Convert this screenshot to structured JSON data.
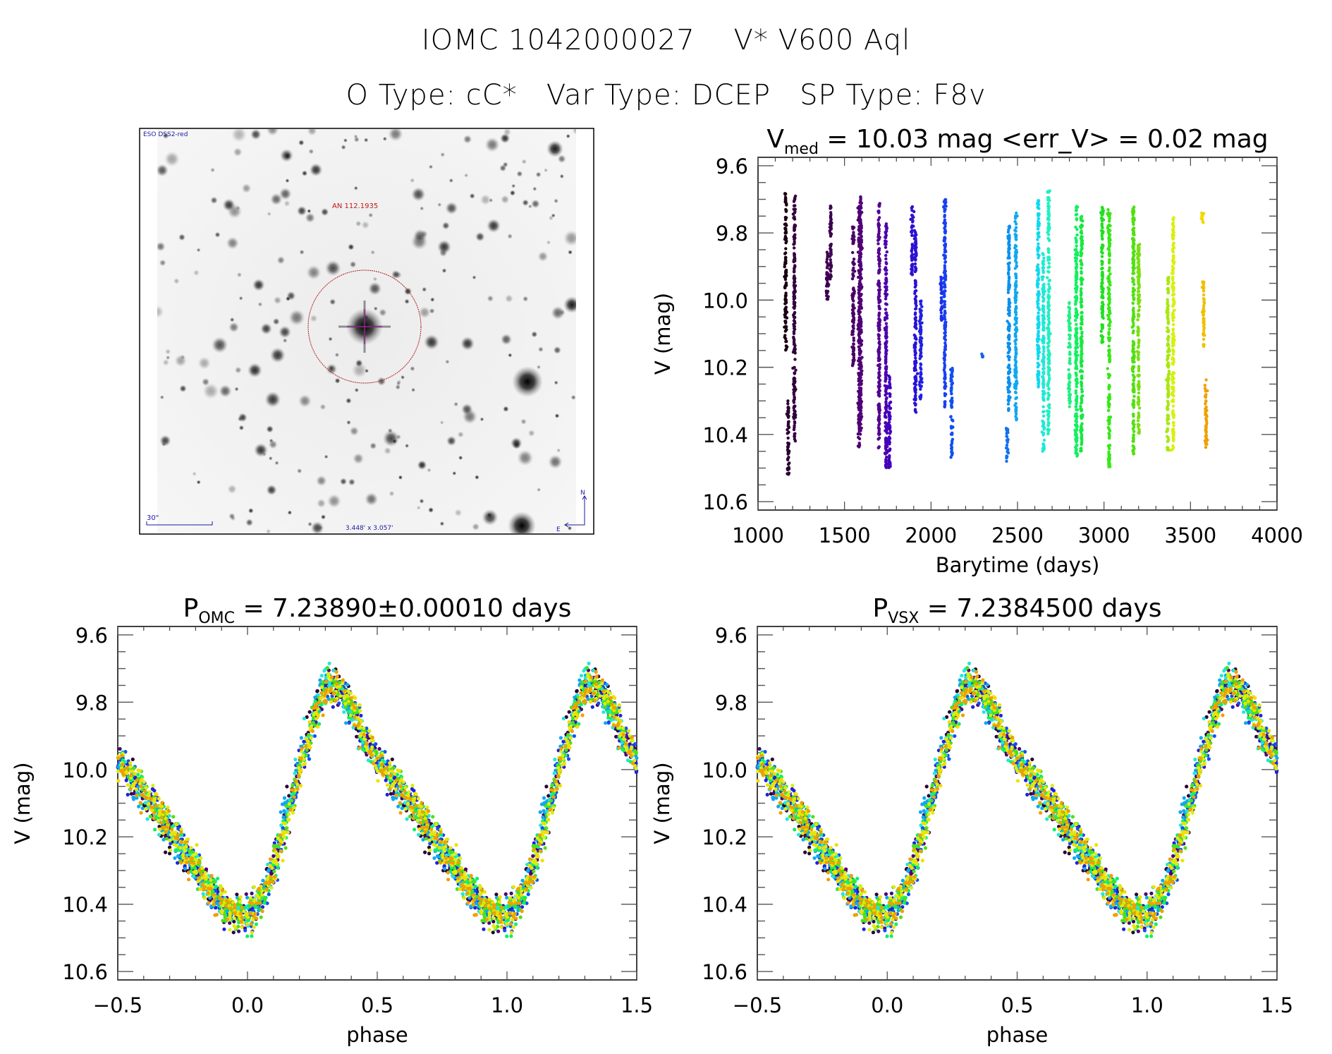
{
  "header": {
    "line1": "IOMC 1042000027    V* V600 Aql",
    "line2": "O Type: cC*   Var Type: DCEP   SP Type: F8v"
  },
  "sky_image": {
    "survey_label": "ESO DSS2-red",
    "object_label": "AN 112.1935",
    "scale_label": "30\"",
    "fov_label": "3.448' x 3.057'",
    "north_label": "N",
    "east_label": "E",
    "label_color": "#1a1aa0",
    "object_color": "#c01818",
    "circle_color": "#b01818",
    "crosshair_color": "#a020a0"
  },
  "chart_data": [
    {
      "id": "lightcurve",
      "type": "scatter",
      "title_main": "V",
      "title_sub": "med",
      "title_rest": " = 10.03 mag <err_V> = 0.02 mag",
      "xlabel": "Barytime (days)",
      "ylabel": "V (mag)",
      "xlim": [
        1000,
        4000
      ],
      "ylim": [
        10.625,
        9.575
      ],
      "y_inverted": true,
      "xticks": [
        1000,
        1500,
        2000,
        2500,
        3000,
        3500,
        4000
      ],
      "xtick_labels": [
        "1000",
        "1500",
        "2000",
        "2500",
        "3000",
        "3500",
        "4000"
      ],
      "x_minor_step": 100,
      "yticks": [
        9.6,
        9.8,
        10.0,
        10.2,
        10.4,
        10.6
      ],
      "ytick_labels": [
        "9.6",
        "9.8",
        "10.0",
        "10.2",
        "10.4",
        "10.6"
      ],
      "y_minor_step": 0.05,
      "grid": false,
      "median_V": 10.03,
      "mean_err_V": 0.02,
      "segments": [
        {
          "t": 1160,
          "vmin": 9.68,
          "vmax": 10.15,
          "color": "#1a0010"
        },
        {
          "t": 1175,
          "vmin": 10.3,
          "vmax": 10.52,
          "color": "#2a0030"
        },
        {
          "t": 1210,
          "vmin": 9.69,
          "vmax": 10.43,
          "color": "#33003f"
        },
        {
          "t": 1400,
          "vmin": 9.85,
          "vmax": 10.0,
          "color": "#3d0050"
        },
        {
          "t": 1420,
          "vmin": 9.72,
          "vmax": 9.94,
          "color": "#3d0050"
        },
        {
          "t": 1550,
          "vmin": 9.78,
          "vmax": 10.2,
          "color": "#480066"
        },
        {
          "t": 1585,
          "vmin": 9.72,
          "vmax": 10.44,
          "color": "#4c0070"
        },
        {
          "t": 1595,
          "vmin": 9.69,
          "vmax": 10.39,
          "color": "#520078"
        },
        {
          "t": 1700,
          "vmin": 9.71,
          "vmax": 10.44,
          "color": "#520090"
        },
        {
          "t": 1740,
          "vmin": 9.76,
          "vmax": 10.5,
          "color": "#4a00b0"
        },
        {
          "t": 1760,
          "vmin": 10.22,
          "vmax": 10.5,
          "color": "#4000c0"
        },
        {
          "t": 1890,
          "vmin": 9.72,
          "vmax": 9.93,
          "color": "#3010d0"
        },
        {
          "t": 1910,
          "vmin": 9.78,
          "vmax": 10.34,
          "color": "#2a10d8"
        },
        {
          "t": 1940,
          "vmin": 10.0,
          "vmax": 10.3,
          "color": "#2020e0"
        },
        {
          "t": 2060,
          "vmin": 9.93,
          "vmax": 10.07,
          "color": "#1c30e8"
        },
        {
          "t": 2080,
          "vmin": 9.7,
          "vmax": 10.32,
          "color": "#1840f0"
        },
        {
          "t": 2120,
          "vmin": 10.2,
          "vmax": 10.47,
          "color": "#1050f0"
        },
        {
          "t": 2300,
          "vmin": 10.16,
          "vmax": 10.17,
          "color": "#1860f0"
        },
        {
          "t": 2440,
          "vmin": 10.38,
          "vmax": 10.48,
          "color": "#1070f0"
        },
        {
          "t": 2450,
          "vmin": 9.78,
          "vmax": 10.33,
          "color": "#0a90f0"
        },
        {
          "t": 2490,
          "vmin": 9.73,
          "vmax": 10.36,
          "color": "#10a8f0"
        },
        {
          "t": 2620,
          "vmin": 9.7,
          "vmax": 10.26,
          "color": "#10d8f0"
        },
        {
          "t": 2650,
          "vmin": 9.86,
          "vmax": 10.45,
          "color": "#20e8d8"
        },
        {
          "t": 2680,
          "vmin": 9.67,
          "vmax": 10.4,
          "color": "#20f0c0"
        },
        {
          "t": 2800,
          "vmin": 10.0,
          "vmax": 10.32,
          "color": "#20f080"
        },
        {
          "t": 2840,
          "vmin": 9.72,
          "vmax": 10.47,
          "color": "#10f060"
        },
        {
          "t": 2870,
          "vmin": 9.74,
          "vmax": 10.45,
          "color": "#18e840"
        },
        {
          "t": 2990,
          "vmin": 9.72,
          "vmax": 10.13,
          "color": "#20e020"
        },
        {
          "t": 3030,
          "vmin": 9.73,
          "vmax": 10.5,
          "color": "#38e818"
        },
        {
          "t": 3170,
          "vmin": 9.72,
          "vmax": 10.46,
          "color": "#50e010"
        },
        {
          "t": 3200,
          "vmin": 9.83,
          "vmax": 10.4,
          "color": "#78e010"
        },
        {
          "t": 3370,
          "vmin": 9.93,
          "vmax": 10.45,
          "color": "#a8e810"
        },
        {
          "t": 3400,
          "vmin": 9.75,
          "vmax": 10.45,
          "color": "#d8f010"
        },
        {
          "t": 3570,
          "vmin": 9.74,
          "vmax": 9.77,
          "color": "#f0d800"
        },
        {
          "t": 3575,
          "vmin": 9.94,
          "vmax": 10.14,
          "color": "#f0c000"
        },
        {
          "t": 3590,
          "vmin": 10.23,
          "vmax": 10.44,
          "color": "#f0a000"
        }
      ]
    },
    {
      "id": "phase_omc",
      "type": "scatter",
      "title_main": "P",
      "title_sub": "OMC",
      "title_rest": " = 7.23890±0.00010 days",
      "period_days": 7.2389,
      "period_err_days": 0.0001,
      "xlabel": "phase",
      "ylabel": "V (mag)",
      "xlim": [
        -0.5,
        1.5
      ],
      "ylim": [
        10.625,
        9.575
      ],
      "y_inverted": true,
      "xticks": [
        -0.5,
        0.0,
        0.5,
        1.0,
        1.5
      ],
      "xtick_labels": [
        "−0.5",
        "0.0",
        "0.5",
        "1.0",
        "1.5"
      ],
      "x_minor_step": 0.1,
      "yticks": [
        9.6,
        9.8,
        10.0,
        10.2,
        10.4,
        10.6
      ],
      "ytick_labels": [
        "9.6",
        "9.8",
        "10.0",
        "10.2",
        "10.4",
        "10.6"
      ],
      "y_minor_step": 0.05,
      "grid": false,
      "template": {
        "phase": [
          0.0,
          0.05,
          0.1,
          0.15,
          0.2,
          0.25,
          0.3,
          0.35,
          0.4,
          0.45,
          0.5,
          0.55,
          0.6,
          0.65,
          0.7,
          0.75,
          0.8,
          0.85,
          0.9,
          0.95,
          1.0
        ],
        "V": [
          10.43,
          10.38,
          10.27,
          10.13,
          9.98,
          9.84,
          9.75,
          9.76,
          9.83,
          9.92,
          9.98,
          10.03,
          10.08,
          10.13,
          10.19,
          10.24,
          10.3,
          10.36,
          10.4,
          10.43,
          10.43
        ]
      }
    },
    {
      "id": "phase_vsx",
      "type": "scatter",
      "title_main": "P",
      "title_sub": "VSX",
      "title_rest": " = 7.2384500 days",
      "period_days": 7.23845,
      "xlabel": "phase",
      "ylabel": "V (mag)",
      "xlim": [
        -0.5,
        1.5
      ],
      "ylim": [
        10.625,
        9.575
      ],
      "y_inverted": true,
      "xticks": [
        -0.5,
        0.0,
        0.5,
        1.0,
        1.5
      ],
      "xtick_labels": [
        "−0.5",
        "0.0",
        "0.5",
        "1.0",
        "1.5"
      ],
      "x_minor_step": 0.1,
      "yticks": [
        9.6,
        9.8,
        10.0,
        10.2,
        10.4,
        10.6
      ],
      "ytick_labels": [
        "9.6",
        "9.8",
        "10.0",
        "10.2",
        "10.4",
        "10.6"
      ],
      "y_minor_step": 0.05,
      "grid": false,
      "template": {
        "phase": [
          0.0,
          0.05,
          0.1,
          0.15,
          0.2,
          0.25,
          0.3,
          0.35,
          0.4,
          0.45,
          0.5,
          0.55,
          0.6,
          0.65,
          0.7,
          0.75,
          0.8,
          0.85,
          0.9,
          0.95,
          1.0
        ],
        "V": [
          10.43,
          10.38,
          10.27,
          10.13,
          9.98,
          9.84,
          9.75,
          9.76,
          9.83,
          9.92,
          9.98,
          10.03,
          10.08,
          10.13,
          10.19,
          10.24,
          10.3,
          10.36,
          10.4,
          10.43,
          10.43
        ]
      }
    }
  ],
  "phase_colors": [
    "#2a0030",
    "#4c0070",
    "#2020e0",
    "#1050f0",
    "#10a8f0",
    "#20e8d8",
    "#10f060",
    "#50e010",
    "#d8f010",
    "#f0e000",
    "#f0a000"
  ]
}
